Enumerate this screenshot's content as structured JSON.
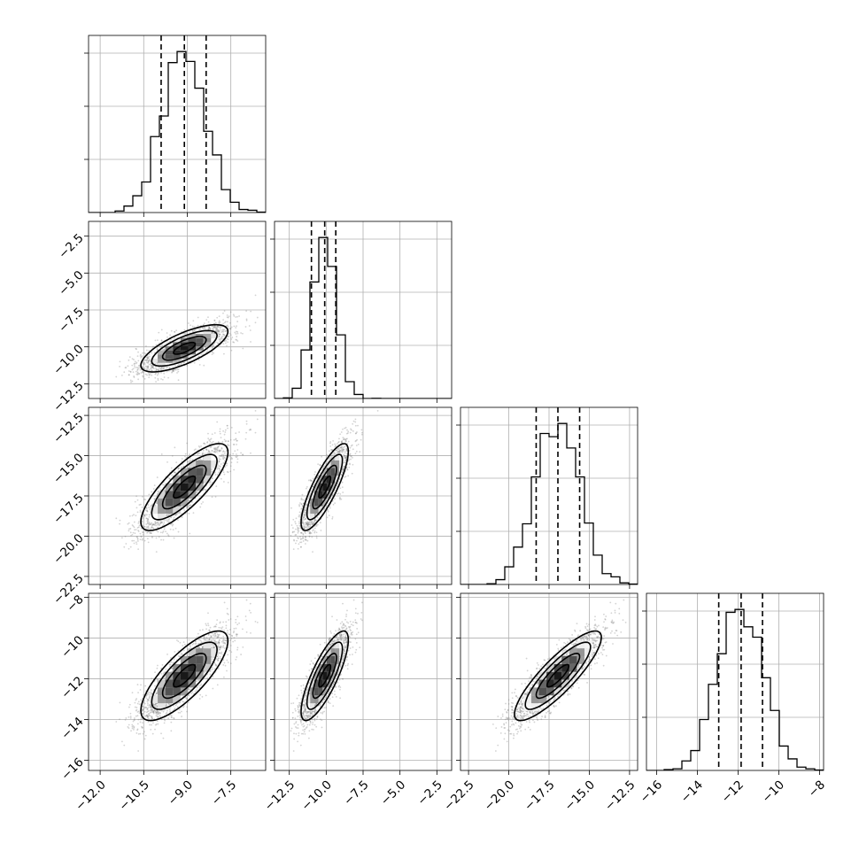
{
  "chart_data": {
    "type": "corner",
    "title": "",
    "parameters": [
      {
        "index": 0,
        "range": [
          -12.4,
          -6.3
        ],
        "ticks": [
          -12.0,
          -10.5,
          -9.0,
          -7.5
        ],
        "tick_labels": [
          "−12.0",
          "−10.5",
          "−9.0",
          "−7.5"
        ],
        "quantiles": [
          -9.9,
          -9.1,
          -8.35
        ],
        "mean": -9.1,
        "sd": 0.75
      },
      {
        "index": 1,
        "range": [
          -13.5,
          -1.5
        ],
        "ticks": [
          -12.5,
          -10.0,
          -7.5,
          -5.0,
          -2.5
        ],
        "tick_labels": [
          "−12.5",
          "−10.0",
          "−7.5",
          "−5.0",
          "−2.5"
        ],
        "quantiles": [
          -11.0,
          -10.1,
          -9.35
        ],
        "mean": -10.1,
        "sd": 0.8
      },
      {
        "index": 2,
        "range": [
          -23.0,
          -12.0
        ],
        "ticks": [
          -22.5,
          -20.0,
          -17.5,
          -15.0,
          -12.5
        ],
        "tick_labels": [
          "−22.5",
          "−20.0",
          "−17.5",
          "−15.0",
          "−12.5"
        ],
        "quantiles": [
          -18.3,
          -16.95,
          -15.6
        ],
        "mean": -16.95,
        "sd": 1.35
      },
      {
        "index": 3,
        "range": [
          -16.5,
          -7.8
        ],
        "ticks": [
          -16,
          -14,
          -12,
          -10,
          -8
        ],
        "tick_labels": [
          "−16",
          "−14",
          "−12",
          "−10",
          "−8"
        ],
        "quantiles": [
          -12.95,
          -11.85,
          -10.8
        ],
        "mean": -11.85,
        "sd": 1.1
      }
    ],
    "correlations": {
      "0-1": 0.72,
      "0-2": 0.8,
      "0-3": 0.78,
      "1-2": 0.82,
      "1-3": 0.8,
      "2-3": 0.86
    },
    "histogram_bins": 20,
    "contour_levels_sigma": [
      0.5,
      1.0,
      1.5,
      2.0
    ],
    "grid": true,
    "quantile_line_style": "dashed",
    "point_color": "#808080"
  }
}
